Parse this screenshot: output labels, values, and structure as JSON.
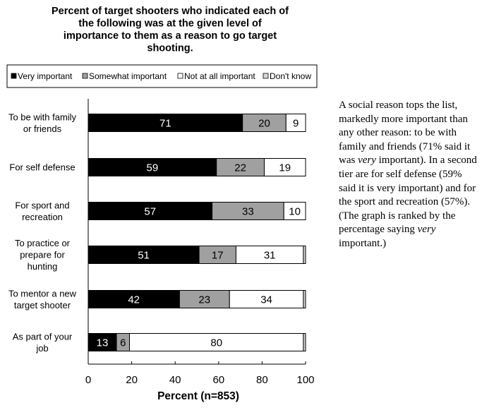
{
  "chart_data": {
    "type": "bar",
    "orientation": "horizontal-stacked",
    "title_lines": [
      "Percent of target shooters who indicated each of",
      "the following was at the given level of",
      "importance to them as a reason to go target",
      "shooting."
    ],
    "categories": [
      [
        "To be with family",
        "or friends"
      ],
      [
        "For self defense"
      ],
      [
        "For sport and",
        "recreation"
      ],
      [
        "To practice or",
        "prepare for",
        "hunting"
      ],
      [
        "To mentor a new",
        "target shooter"
      ],
      [
        "As part of your",
        "job"
      ]
    ],
    "series": [
      {
        "name": "Very important",
        "color": "#000000",
        "label_color": "#ffffff",
        "values": [
          71,
          59,
          57,
          51,
          42,
          13
        ]
      },
      {
        "name": "Somewhat important",
        "color": "#a0a0a0",
        "label_color": "#000000",
        "values": [
          20,
          22,
          33,
          17,
          23,
          6
        ]
      },
      {
        "name": "Not at all important",
        "color": "#ffffff",
        "label_color": "#000000",
        "values": [
          9,
          19,
          10,
          31,
          34,
          80
        ]
      },
      {
        "name": "Don't know",
        "color": "#d8d8d8",
        "label_color": "#000000",
        "values": [
          0,
          0,
          0,
          1,
          1,
          1
        ]
      }
    ],
    "data_labels": [
      [
        "71",
        "20",
        "9",
        ""
      ],
      [
        "59",
        "22",
        "19",
        ""
      ],
      [
        "57",
        "33",
        "10",
        ""
      ],
      [
        "51",
        "17",
        "31",
        ""
      ],
      [
        "42",
        "23",
        "34",
        ""
      ],
      [
        "13",
        "6",
        "80",
        ""
      ]
    ],
    "legend_labels": [
      "Very important",
      "Somewhat important",
      "Not at all important",
      "Don't know"
    ],
    "x_ticks": [
      "0",
      "20",
      "40",
      "60",
      "80",
      "100"
    ],
    "xlim": [
      0,
      100
    ],
    "xlabel": "Percent (n=853)",
    "ylabel": "",
    "grid": false,
    "legend_position": "top"
  },
  "side_note": {
    "segments": [
      {
        "text": "A social reason tops the list, markedly more important than any other reason: to be with family and friends (71% said it was ",
        "italic": false
      },
      {
        "text": "very",
        "italic": true
      },
      {
        "text": " important). In a second tier are for self defense (59% said it is very important) and for the sport and recreation (57%). (The graph is ranked by the percentage saying ",
        "italic": false
      },
      {
        "text": "very",
        "italic": true
      },
      {
        "text": " important.)",
        "italic": false
      }
    ]
  }
}
